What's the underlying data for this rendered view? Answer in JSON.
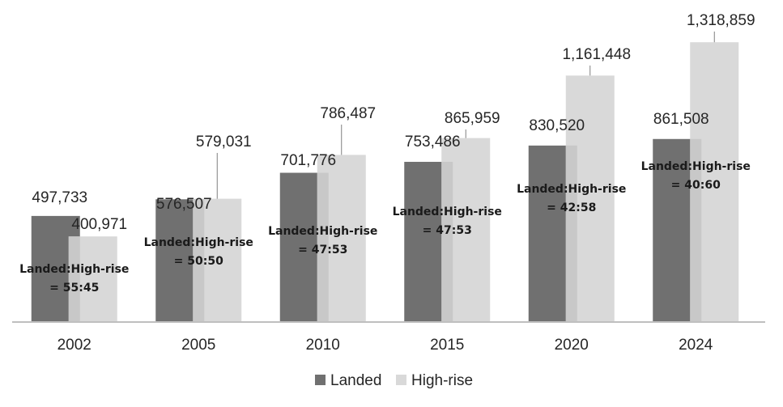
{
  "chart_data": {
    "type": "bar",
    "categories": [
      "2002",
      "2005",
      "2010",
      "2015",
      "2020",
      "2024"
    ],
    "series": [
      {
        "name": "Landed",
        "values": [
          497733,
          576507,
          701776,
          753486,
          830520,
          861508
        ],
        "color": "#707070",
        "shade": "#888888"
      },
      {
        "name": "High-rise",
        "values": [
          400971,
          579031,
          786487,
          865959,
          1161448,
          1318859
        ],
        "color": "#d9d9d9",
        "shade": "#c2c2c2"
      }
    ],
    "value_labels": {
      "Landed": [
        "497,733",
        "576,507",
        "701,776",
        "753,486",
        "830,520",
        "861,508"
      ],
      "High-rise": [
        "400,971",
        "579,031",
        "786,487",
        "865,959",
        "1,161,448",
        "1,318,859"
      ]
    },
    "annotations": [
      {
        "line1": "Landed:High-rise",
        "line2": "= 55:45"
      },
      {
        "line1": "Landed:High-rise",
        "line2": "= 50:50"
      },
      {
        "line1": "Landed:High-rise",
        "line2": "= 47:53"
      },
      {
        "line1": "Landed:High-rise",
        "line2": "= 47:53"
      },
      {
        "line1": "Landed:High-rise",
        "line2": "= 42:58"
      },
      {
        "line1": "Landed:High-rise",
        "line2": "= 40:60"
      }
    ],
    "ylim": [
      0,
      1400000
    ],
    "grid": false,
    "legend_position": "bottom",
    "axis_color": "#bfbfbf"
  }
}
